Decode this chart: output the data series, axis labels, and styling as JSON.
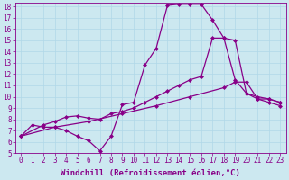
{
  "background_color": "#cce8f0",
  "line_color": "#880088",
  "marker": "D",
  "markersize": 2.0,
  "linewidth": 0.9,
  "xlabel": "Windchill (Refroidissement éolien,°C)",
  "xlabel_fontsize": 6.5,
  "xlabel_color": "#880088",
  "tick_color": "#880088",
  "tick_fontsize": 5.5,
  "xlim": [
    -0.5,
    23.5
  ],
  "ylim": [
    5,
    18.3
  ],
  "xticks": [
    0,
    1,
    2,
    3,
    4,
    5,
    6,
    7,
    8,
    9,
    10,
    11,
    12,
    13,
    14,
    15,
    16,
    17,
    18,
    19,
    20,
    21,
    22,
    23
  ],
  "yticks": [
    5,
    6,
    7,
    8,
    9,
    10,
    11,
    12,
    13,
    14,
    15,
    16,
    17,
    18
  ],
  "grid_color": "#b0d8e8",
  "curves": [
    {
      "x": [
        0,
        1,
        2,
        3,
        4,
        5,
        6,
        7,
        8,
        9,
        10,
        11,
        12,
        13,
        14,
        15,
        16,
        17,
        18,
        19,
        20,
        21,
        22,
        23
      ],
      "y": [
        6.5,
        7.5,
        7.3,
        7.3,
        7.0,
        6.5,
        6.1,
        5.2,
        6.5,
        9.3,
        9.5,
        12.8,
        14.3,
        18.1,
        18.2,
        18.2,
        18.2,
        16.8,
        15.2,
        11.5,
        10.3,
        9.8,
        9.5,
        9.2
      ]
    },
    {
      "x": [
        0,
        2,
        3,
        4,
        5,
        6,
        7,
        8,
        9,
        10,
        11,
        12,
        13,
        14,
        15,
        16,
        17,
        18,
        19,
        20,
        21,
        22,
        23
      ],
      "y": [
        6.5,
        7.5,
        7.8,
        8.2,
        8.3,
        8.1,
        8.0,
        8.5,
        8.7,
        9.0,
        9.5,
        10.0,
        10.5,
        11.0,
        11.5,
        11.8,
        15.2,
        15.2,
        15.0,
        10.3,
        10.0,
        9.8,
        9.5
      ]
    },
    {
      "x": [
        0,
        3,
        6,
        9,
        12,
        15,
        18,
        19,
        20,
        21,
        22,
        23
      ],
      "y": [
        6.5,
        7.3,
        7.8,
        8.5,
        9.2,
        10.0,
        10.8,
        11.3,
        11.3,
        9.8,
        9.8,
        9.5
      ]
    }
  ]
}
